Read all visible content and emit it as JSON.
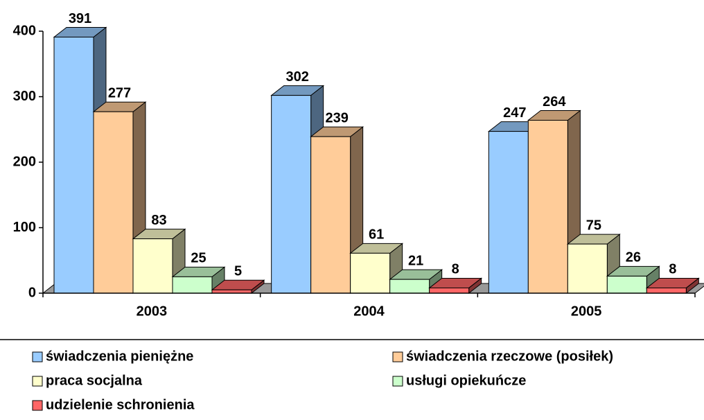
{
  "chart_data": {
    "type": "bar3d",
    "categories": [
      "2003",
      "2004",
      "2005"
    ],
    "series": [
      {
        "name": "świadczenia pieniężne",
        "color": "#99ccff",
        "values": [
          391,
          302,
          247
        ]
      },
      {
        "name": "świadczenia rzeczowe (posiłek)",
        "color": "#ffcc99",
        "values": [
          277,
          239,
          264
        ]
      },
      {
        "name": "praca socjalna",
        "color": "#ffffcc",
        "values": [
          83,
          61,
          75
        ]
      },
      {
        "name": "usługi opiekuńcze",
        "color": "#ccffcc",
        "values": [
          25,
          21,
          26
        ]
      },
      {
        "name": "udzielenie schronienia",
        "color": "#ff6666",
        "values": [
          5,
          8,
          8
        ]
      }
    ],
    "ylim": [
      0,
      400
    ],
    "yticks": [
      0,
      100,
      200,
      300,
      400
    ],
    "legend": "bottom"
  }
}
